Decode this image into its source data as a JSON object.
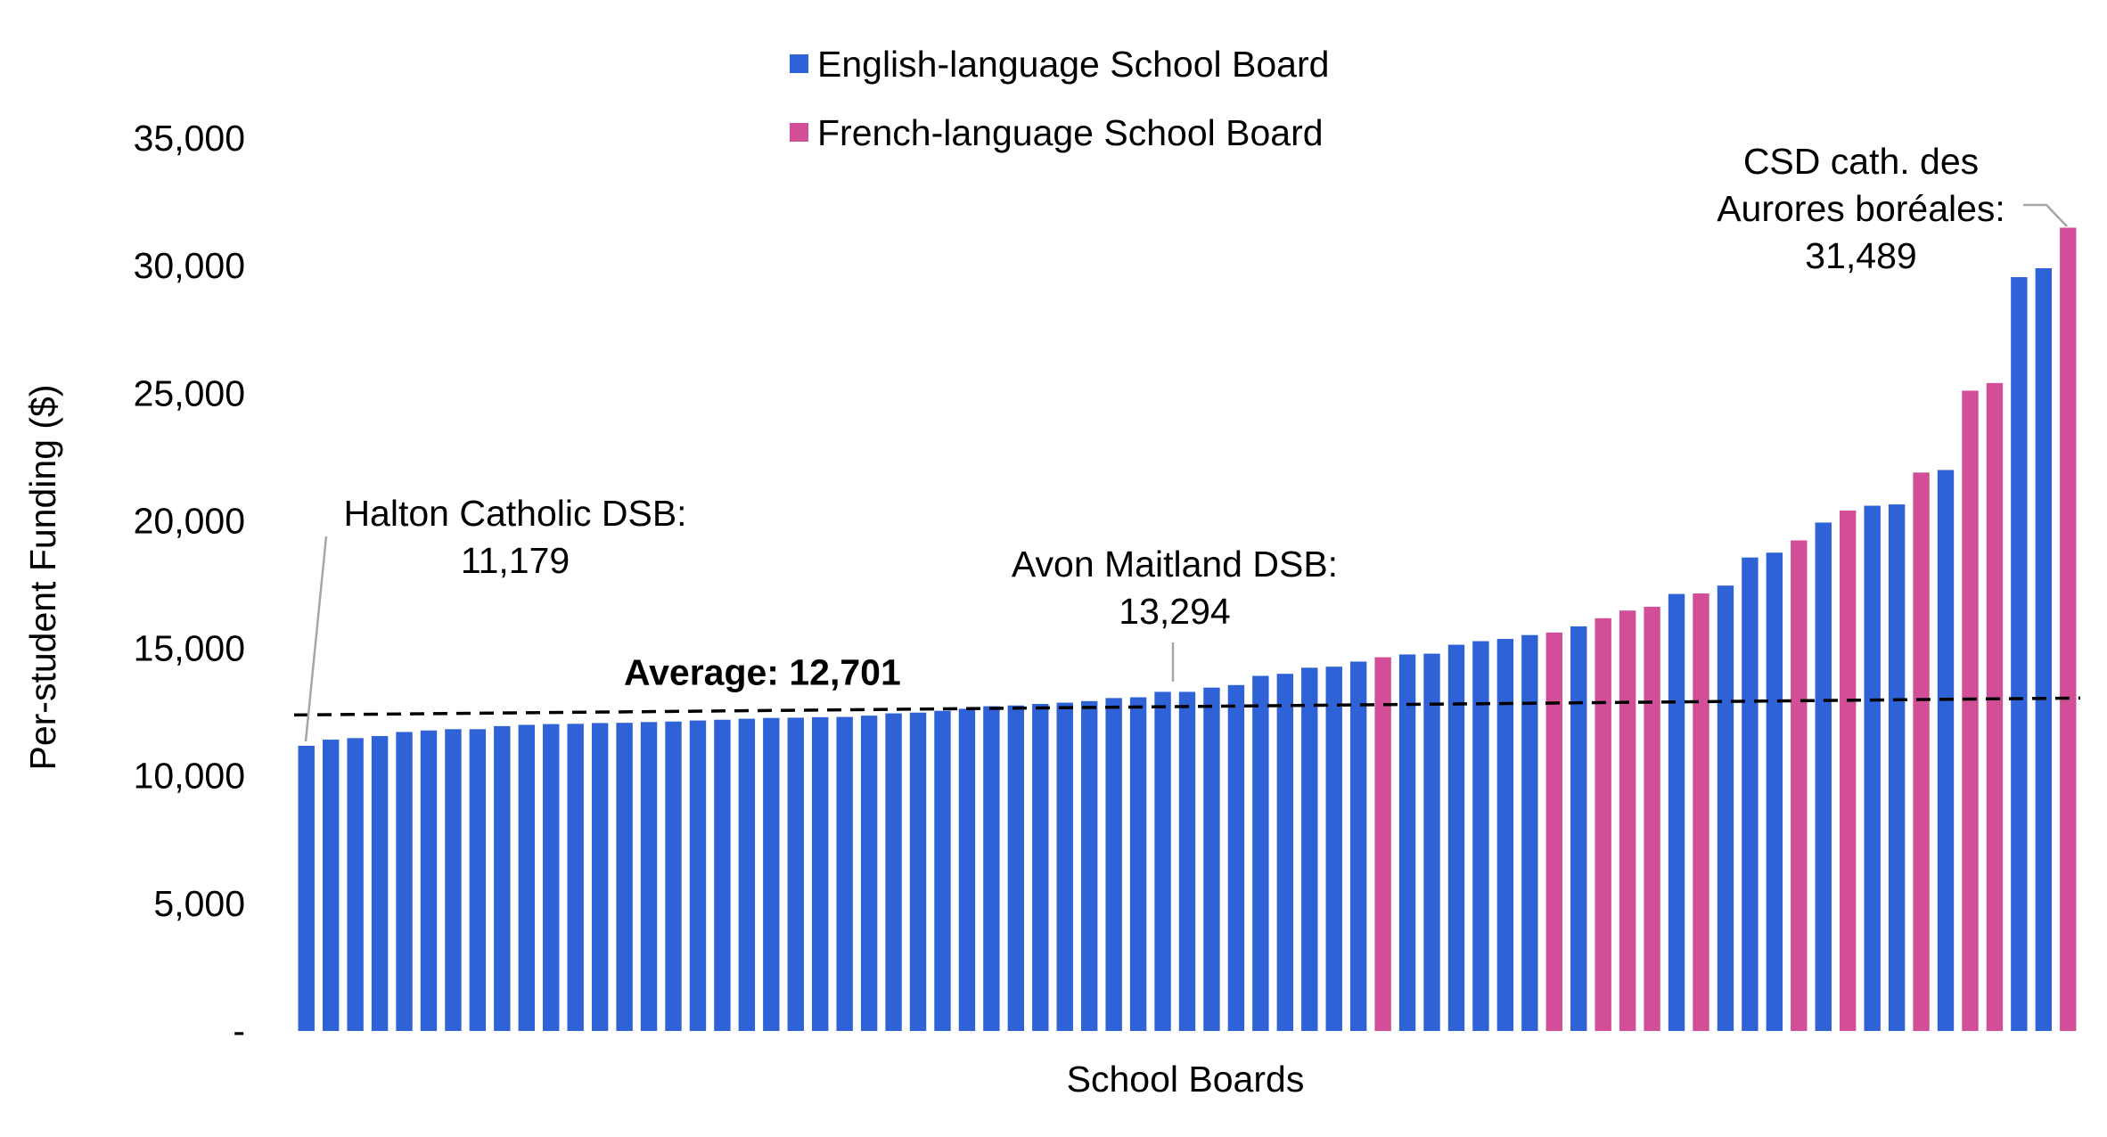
{
  "chart_data": {
    "type": "bar",
    "xlabel": "School Boards",
    "ylabel": "Per-student Funding ($)",
    "ylim": [
      0,
      35000
    ],
    "y_ticks": [
      {
        "value": 0,
        "label": "-"
      },
      {
        "value": 5000,
        "label": "5,000"
      },
      {
        "value": 10000,
        "label": "10,000"
      },
      {
        "value": 15000,
        "label": "15,000"
      },
      {
        "value": 20000,
        "label": "20,000"
      },
      {
        "value": 25000,
        "label": "25,000"
      },
      {
        "value": 30000,
        "label": "30,000"
      },
      {
        "value": 35000,
        "label": "35,000"
      }
    ],
    "grid": false,
    "legend_position": "top-center",
    "legend": [
      {
        "key": "E",
        "label": "English-language School Board",
        "color": "#2f62d6"
      },
      {
        "key": "F",
        "label": "French-language School Board",
        "color": "#d24f98"
      }
    ],
    "bars": [
      {
        "value": 11179,
        "group": "E"
      },
      {
        "value": 11420,
        "group": "E"
      },
      {
        "value": 11480,
        "group": "E"
      },
      {
        "value": 11560,
        "group": "E"
      },
      {
        "value": 11720,
        "group": "E"
      },
      {
        "value": 11780,
        "group": "E"
      },
      {
        "value": 11830,
        "group": "E"
      },
      {
        "value": 11830,
        "group": "E"
      },
      {
        "value": 11950,
        "group": "E"
      },
      {
        "value": 12000,
        "group": "E"
      },
      {
        "value": 12030,
        "group": "E"
      },
      {
        "value": 12040,
        "group": "E"
      },
      {
        "value": 12070,
        "group": "E"
      },
      {
        "value": 12080,
        "group": "E"
      },
      {
        "value": 12110,
        "group": "E"
      },
      {
        "value": 12130,
        "group": "E"
      },
      {
        "value": 12170,
        "group": "E"
      },
      {
        "value": 12200,
        "group": "E"
      },
      {
        "value": 12240,
        "group": "E"
      },
      {
        "value": 12270,
        "group": "E"
      },
      {
        "value": 12280,
        "group": "E"
      },
      {
        "value": 12300,
        "group": "E"
      },
      {
        "value": 12310,
        "group": "E"
      },
      {
        "value": 12360,
        "group": "E"
      },
      {
        "value": 12450,
        "group": "E"
      },
      {
        "value": 12480,
        "group": "E"
      },
      {
        "value": 12550,
        "group": "E"
      },
      {
        "value": 12630,
        "group": "E"
      },
      {
        "value": 12730,
        "group": "E"
      },
      {
        "value": 12760,
        "group": "E"
      },
      {
        "value": 12820,
        "group": "E"
      },
      {
        "value": 12870,
        "group": "E"
      },
      {
        "value": 12930,
        "group": "E"
      },
      {
        "value": 13050,
        "group": "E"
      },
      {
        "value": 13080,
        "group": "E"
      },
      {
        "value": 13294,
        "group": "E"
      },
      {
        "value": 13294,
        "group": "E"
      },
      {
        "value": 13460,
        "group": "E"
      },
      {
        "value": 13560,
        "group": "E"
      },
      {
        "value": 13920,
        "group": "E"
      },
      {
        "value": 14000,
        "group": "E"
      },
      {
        "value": 14240,
        "group": "E"
      },
      {
        "value": 14280,
        "group": "E"
      },
      {
        "value": 14480,
        "group": "E"
      },
      {
        "value": 14650,
        "group": "F"
      },
      {
        "value": 14760,
        "group": "E"
      },
      {
        "value": 14790,
        "group": "E"
      },
      {
        "value": 15140,
        "group": "E"
      },
      {
        "value": 15280,
        "group": "E"
      },
      {
        "value": 15370,
        "group": "E"
      },
      {
        "value": 15520,
        "group": "E"
      },
      {
        "value": 15620,
        "group": "F"
      },
      {
        "value": 15860,
        "group": "E"
      },
      {
        "value": 16180,
        "group": "F"
      },
      {
        "value": 16480,
        "group": "F"
      },
      {
        "value": 16630,
        "group": "F"
      },
      {
        "value": 17130,
        "group": "E"
      },
      {
        "value": 17150,
        "group": "F"
      },
      {
        "value": 17460,
        "group": "E"
      },
      {
        "value": 18560,
        "group": "E"
      },
      {
        "value": 18750,
        "group": "E"
      },
      {
        "value": 19230,
        "group": "F"
      },
      {
        "value": 19930,
        "group": "E"
      },
      {
        "value": 20400,
        "group": "F"
      },
      {
        "value": 20590,
        "group": "E"
      },
      {
        "value": 20640,
        "group": "E"
      },
      {
        "value": 21890,
        "group": "F"
      },
      {
        "value": 21990,
        "group": "E"
      },
      {
        "value": 25100,
        "group": "F"
      },
      {
        "value": 25400,
        "group": "F"
      },
      {
        "value": 29550,
        "group": "E"
      },
      {
        "value": 29900,
        "group": "E"
      },
      {
        "value": 31489,
        "group": "F"
      }
    ],
    "average": {
      "value": 12701,
      "label": "Average: 12,701"
    },
    "annotations": [
      {
        "bar_index": 0,
        "lines": [
          "Halton Catholic DSB:",
          "11,179"
        ]
      },
      {
        "bar_index": 35,
        "lines": [
          "Avon Maitland DSB:",
          "13,294"
        ]
      },
      {
        "bar_index": 72,
        "lines": [
          "CSD cath. des",
          "Aurores boréales:",
          "31,489"
        ]
      }
    ]
  }
}
